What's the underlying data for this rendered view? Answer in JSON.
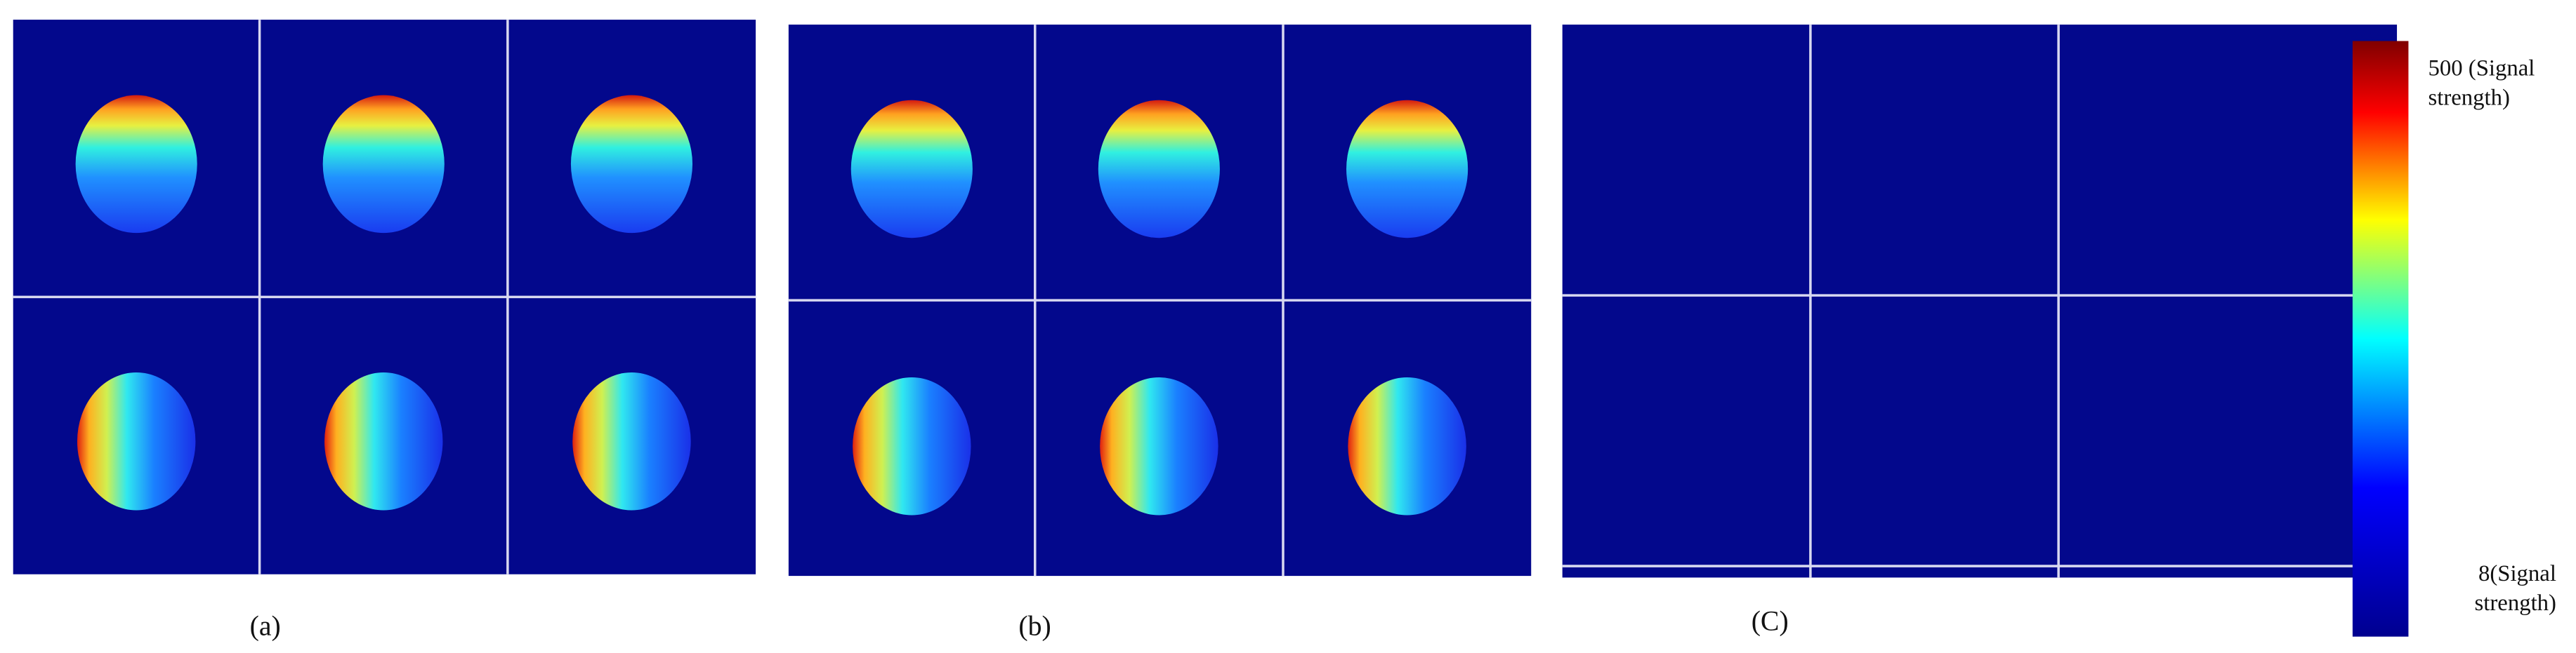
{
  "panels": [
    {
      "label": "(a)"
    },
    {
      "label": "(b)"
    },
    {
      "label": "(C)"
    }
  ],
  "colorbar": {
    "max_label": "500 (Signal strength)",
    "min_label": "8(Signal strength)"
  }
}
